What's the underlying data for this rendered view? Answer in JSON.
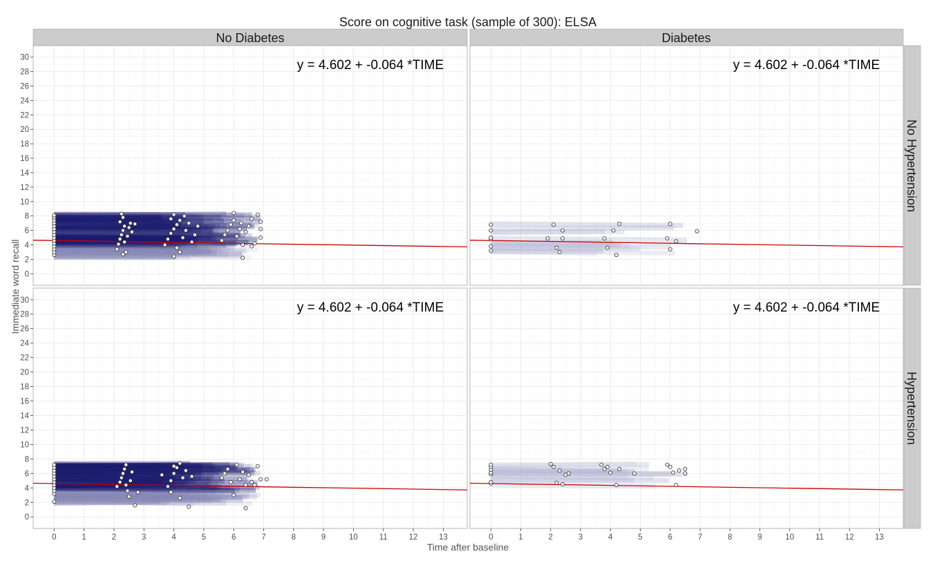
{
  "chart_data": {
    "type": "scatter",
    "title": "Score on cognitive task (sample of 300): ELSA",
    "xlabel": "Time after baseline",
    "ylabel": "Immediate word recall",
    "xlim": [
      -0.7,
      13.8
    ],
    "ylim": [
      -1.6,
      31.6
    ],
    "x_ticks": [
      0,
      1,
      2,
      3,
      4,
      5,
      6,
      7,
      8,
      9,
      10,
      11,
      12,
      13
    ],
    "y_ticks": [
      0,
      2,
      4,
      6,
      8,
      10,
      12,
      14,
      16,
      18,
      20,
      22,
      24,
      26,
      28,
      30
    ],
    "grid": true,
    "column_facets": [
      "No Diabetes",
      "Diabetes"
    ],
    "row_facets": [
      "No Hypertension",
      "Hypertension"
    ],
    "fit_line": {
      "intercept": 4.602,
      "slope": -0.064,
      "x_range": [
        -0.7,
        13.8
      ],
      "color": "#cc0000"
    },
    "colors": {
      "band": "#1a1a6e",
      "light_band": "#c9cade",
      "point_fill": "#f2f2f2",
      "point_stroke": "#333333",
      "strip": "#cccccc"
    },
    "panels": [
      {
        "col": "No Diabetes",
        "row": "No Hypertension",
        "annotation": "y =  4.602  +  -0.064 *TIME",
        "band_density": "dense",
        "points": [
          [
            0,
            2.6
          ],
          [
            0,
            3.0
          ],
          [
            0,
            3.4
          ],
          [
            0,
            3.8
          ],
          [
            0,
            4.2
          ],
          [
            0,
            4.6
          ],
          [
            0,
            5.0
          ],
          [
            0,
            5.4
          ],
          [
            0,
            5.8
          ],
          [
            0,
            6.2
          ],
          [
            0,
            6.6
          ],
          [
            0,
            7.0
          ],
          [
            0,
            7.4
          ],
          [
            0,
            7.8
          ],
          [
            0,
            8.1
          ],
          [
            2.1,
            3.4
          ],
          [
            2.15,
            4.1
          ],
          [
            2.2,
            4.8
          ],
          [
            2.25,
            5.4
          ],
          [
            2.3,
            6.0
          ],
          [
            2.35,
            6.6
          ],
          [
            2.2,
            7.2
          ],
          [
            2.3,
            7.8
          ],
          [
            2.25,
            8.3
          ],
          [
            2.4,
            3.0
          ],
          [
            2.45,
            5.2
          ],
          [
            2.5,
            6.4
          ],
          [
            2.55,
            7.0
          ],
          [
            2.35,
            4.4
          ],
          [
            2.6,
            5.8
          ],
          [
            2.3,
            2.7
          ],
          [
            2.7,
            6.9
          ],
          [
            3.7,
            4.0
          ],
          [
            3.8,
            4.8
          ],
          [
            3.9,
            5.6
          ],
          [
            4.0,
            6.2
          ],
          [
            4.1,
            6.8
          ],
          [
            4.2,
            7.4
          ],
          [
            4.0,
            8.2
          ],
          [
            4.3,
            5.0
          ],
          [
            4.4,
            6.0
          ],
          [
            4.5,
            7.0
          ],
          [
            4.6,
            4.4
          ],
          [
            4.1,
            3.6
          ],
          [
            4.0,
            2.4
          ],
          [
            4.2,
            3.0
          ],
          [
            4.7,
            5.4
          ],
          [
            4.8,
            6.6
          ],
          [
            3.9,
            7.6
          ],
          [
            4.35,
            8.0
          ],
          [
            5.6,
            4.6
          ],
          [
            5.7,
            5.4
          ],
          [
            5.8,
            6.0
          ],
          [
            5.9,
            6.8
          ],
          [
            6.0,
            7.4
          ],
          [
            6.0,
            8.4
          ],
          [
            6.1,
            5.2
          ],
          [
            6.2,
            6.2
          ],
          [
            6.25,
            7.0
          ],
          [
            6.3,
            4.0
          ],
          [
            6.3,
            2.2
          ],
          [
            6.4,
            5.8
          ],
          [
            6.5,
            6.6
          ],
          [
            6.6,
            7.6
          ],
          [
            6.7,
            4.2
          ],
          [
            6.8,
            8.2
          ],
          [
            6.9,
            7.2
          ],
          [
            6.9,
            6.2
          ],
          [
            6.9,
            5.0
          ],
          [
            6.6,
            3.8
          ]
        ]
      },
      {
        "col": "Diabetes",
        "row": "No Hypertension",
        "annotation": "y =  4.602  +  -0.064 *TIME",
        "band_density": "sparse",
        "points": [
          [
            0,
            3.2
          ],
          [
            0,
            3.8
          ],
          [
            0,
            4.8
          ],
          [
            0,
            5.0
          ],
          [
            0,
            6.0
          ],
          [
            0,
            6.8
          ],
          [
            2.1,
            6.8
          ],
          [
            2.2,
            3.6
          ],
          [
            2.3,
            3.0
          ],
          [
            2.4,
            6.0
          ],
          [
            2.4,
            4.9
          ],
          [
            1.9,
            4.9
          ],
          [
            3.8,
            4.9
          ],
          [
            3.9,
            3.6
          ],
          [
            4.1,
            6.0
          ],
          [
            4.2,
            2.6
          ],
          [
            4.3,
            6.9
          ],
          [
            5.9,
            4.9
          ],
          [
            6.0,
            6.9
          ],
          [
            6.0,
            3.4
          ],
          [
            6.2,
            4.5
          ],
          [
            6.9,
            5.9
          ]
        ]
      },
      {
        "col": "No Diabetes",
        "row": "Hypertension",
        "annotation": "y =  4.602  +  -0.064 *TIME",
        "band_density": "dense",
        "points": [
          [
            0,
            2.1
          ],
          [
            0,
            3.2
          ],
          [
            0,
            3.6
          ],
          [
            0,
            4.0
          ],
          [
            0,
            4.4
          ],
          [
            0,
            4.8
          ],
          [
            0,
            5.2
          ],
          [
            0,
            5.6
          ],
          [
            0,
            6.0
          ],
          [
            0,
            6.4
          ],
          [
            0,
            6.8
          ],
          [
            0,
            7.2
          ],
          [
            2.1,
            4.2
          ],
          [
            2.2,
            4.8
          ],
          [
            2.25,
            5.4
          ],
          [
            2.3,
            6.0
          ],
          [
            2.35,
            6.6
          ],
          [
            2.4,
            7.2
          ],
          [
            2.45,
            3.6
          ],
          [
            2.5,
            2.8
          ],
          [
            2.55,
            5.0
          ],
          [
            2.6,
            6.2
          ],
          [
            2.7,
            1.6
          ],
          [
            2.8,
            3.4
          ],
          [
            2.4,
            4.4
          ],
          [
            3.6,
            5.8
          ],
          [
            3.8,
            4.2
          ],
          [
            3.9,
            5.0
          ],
          [
            4.0,
            6.0
          ],
          [
            4.1,
            6.8
          ],
          [
            4.2,
            7.4
          ],
          [
            4.3,
            5.4
          ],
          [
            4.4,
            6.4
          ],
          [
            4.2,
            2.6
          ],
          [
            4.5,
            1.4
          ],
          [
            4.6,
            5.6
          ],
          [
            3.9,
            3.4
          ],
          [
            4.0,
            7.0
          ],
          [
            5.6,
            5.4
          ],
          [
            5.7,
            6.0
          ],
          [
            5.8,
            6.6
          ],
          [
            5.9,
            4.8
          ],
          [
            6.0,
            3.0
          ],
          [
            6.1,
            7.2
          ],
          [
            6.2,
            5.2
          ],
          [
            6.3,
            6.2
          ],
          [
            6.4,
            4.4
          ],
          [
            6.5,
            5.8
          ],
          [
            6.6,
            4.8
          ],
          [
            6.8,
            7.0
          ],
          [
            6.9,
            5.2
          ],
          [
            7.1,
            5.2
          ],
          [
            6.4,
            1.2
          ],
          [
            6.7,
            4.4
          ]
        ]
      },
      {
        "col": "Diabetes",
        "row": "Hypertension",
        "annotation": "y =  4.602  +  -0.064 *TIME",
        "band_density": "sparse",
        "points": [
          [
            0,
            4.6
          ],
          [
            0,
            4.8
          ],
          [
            0,
            5.9
          ],
          [
            0,
            6.1
          ],
          [
            0,
            6.5
          ],
          [
            0,
            6.9
          ],
          [
            0,
            7.2
          ],
          [
            2.0,
            7.3
          ],
          [
            2.1,
            6.9
          ],
          [
            2.2,
            4.7
          ],
          [
            2.3,
            6.4
          ],
          [
            2.4,
            4.5
          ],
          [
            2.5,
            5.8
          ],
          [
            2.6,
            6.0
          ],
          [
            3.7,
            7.2
          ],
          [
            3.8,
            6.6
          ],
          [
            3.9,
            6.9
          ],
          [
            4.0,
            6.1
          ],
          [
            4.2,
            4.4
          ],
          [
            4.3,
            6.6
          ],
          [
            4.8,
            6.0
          ],
          [
            5.9,
            7.2
          ],
          [
            6.0,
            6.9
          ],
          [
            6.1,
            6.1
          ],
          [
            6.2,
            4.4
          ],
          [
            6.3,
            6.4
          ],
          [
            6.5,
            6.6
          ],
          [
            6.5,
            6.0
          ]
        ]
      }
    ]
  }
}
